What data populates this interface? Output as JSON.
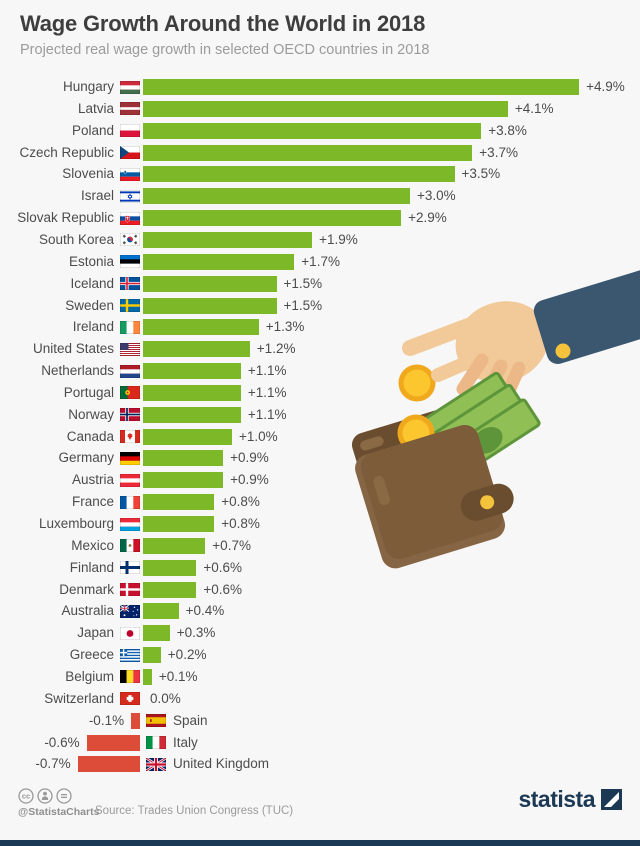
{
  "header": {
    "title": "Wage Growth Around the World in 2018",
    "subtitle": "Projected real wage growth in selected OECD countries in 2018"
  },
  "chart_data": {
    "type": "bar",
    "orientation": "horizontal",
    "title": "Wage Growth Around the World in 2018",
    "unit": "%",
    "xlim": [
      -0.7,
      4.9
    ],
    "positive_color": "#7db829",
    "negative_color": "#dd4c39",
    "categories": [
      "Hungary",
      "Latvia",
      "Poland",
      "Czech Republic",
      "Slovenia",
      "Israel",
      "Slovak Republic",
      "South Korea",
      "Estonia",
      "Iceland",
      "Sweden",
      "Ireland",
      "United States",
      "Netherlands",
      "Portugal",
      "Norway",
      "Canada",
      "Germany",
      "Austria",
      "France",
      "Luxembourg",
      "Mexico",
      "Finland",
      "Denmark",
      "Australia",
      "Japan",
      "Greece",
      "Belgium",
      "Switzerland",
      "Spain",
      "Italy",
      "United Kingdom"
    ],
    "values": [
      4.9,
      4.1,
      3.8,
      3.7,
      3.5,
      3.0,
      2.9,
      1.9,
      1.7,
      1.5,
      1.5,
      1.3,
      1.2,
      1.1,
      1.1,
      1.1,
      1.0,
      0.9,
      0.9,
      0.8,
      0.8,
      0.7,
      0.6,
      0.6,
      0.4,
      0.3,
      0.2,
      0.1,
      0.0,
      -0.1,
      -0.6,
      -0.7
    ],
    "value_labels": [
      "+4.9%",
      "+4.1%",
      "+3.8%",
      "+3.7%",
      "+3.5%",
      "+3.0%",
      "+2.9%",
      "+1.9%",
      "+1.7%",
      "+1.5%",
      "+1.5%",
      "+1.3%",
      "+1.2%",
      "+1.1%",
      "+1.1%",
      "+1.1%",
      "+1.0%",
      "+0.9%",
      "+0.9%",
      "+0.8%",
      "+0.8%",
      "+0.7%",
      "+0.6%",
      "+0.6%",
      "+0.4%",
      "+0.3%",
      "+0.2%",
      "+0.1%",
      "0.0%",
      "-0.1%",
      "-0.6%",
      "-0.7%"
    ],
    "flag_codes": [
      "hu",
      "lv",
      "pl",
      "cz",
      "si",
      "il",
      "sk",
      "kr",
      "ee",
      "is",
      "se",
      "ie",
      "us",
      "nl",
      "pt",
      "no",
      "ca",
      "de",
      "at",
      "fr",
      "lu",
      "mx",
      "fi",
      "dk",
      "au",
      "jp",
      "gr",
      "be",
      "ch",
      "es",
      "it",
      "gb"
    ]
  },
  "footer": {
    "handle": "@StatistaCharts",
    "source": "Source: Trades Union Congress (TUC)",
    "logo": "statista",
    "license_icons": [
      "cc-icon",
      "cc-attribution-icon",
      "cc-nd-icon"
    ]
  },
  "colors": {
    "background": "#f7f7f8",
    "title_text": "#3e3e3e",
    "subtitle_text": "#9b9b9b",
    "label_text": "#4c4c4c",
    "brand_navy": "#1b3954"
  }
}
